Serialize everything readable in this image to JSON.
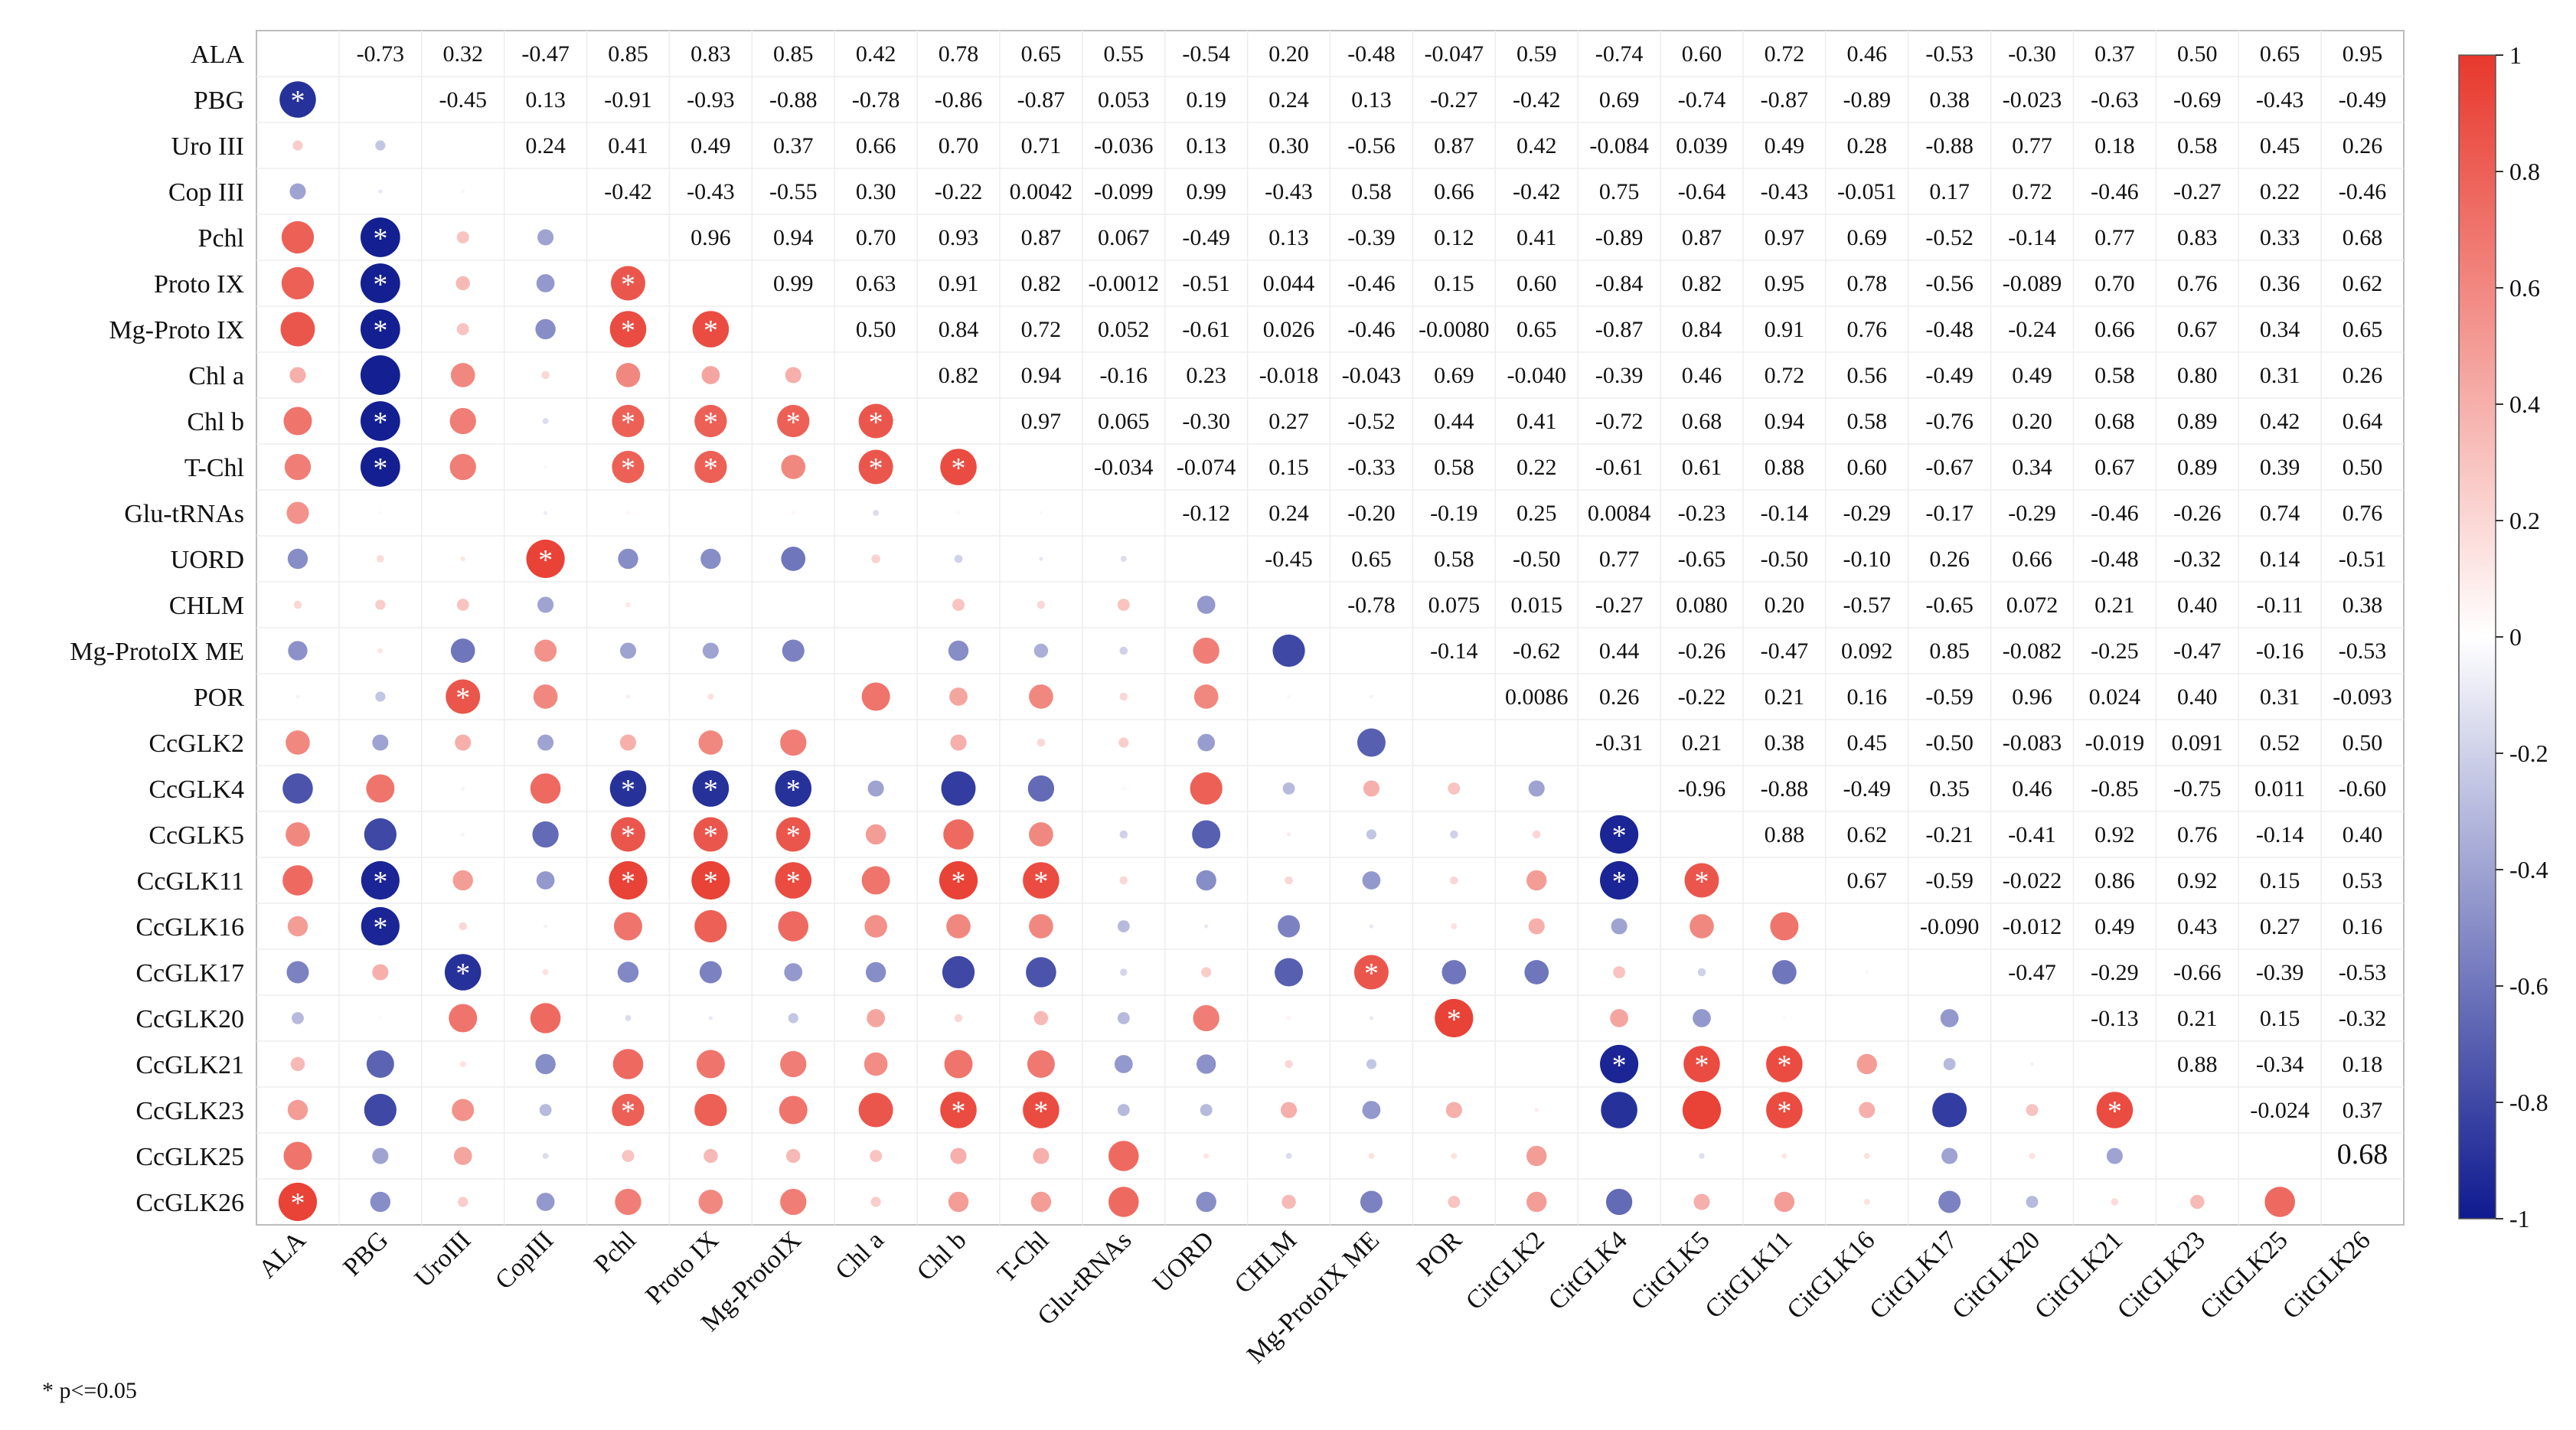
{
  "chart_data": {
    "type": "heatmap",
    "title": "",
    "row_labels": [
      "ALA",
      "PBG",
      "Uro III",
      "Cop III",
      "Pchl",
      "Proto IX",
      "Mg-Proto IX",
      "Chl a",
      "Chl b",
      "T-Chl",
      "Glu-tRNAs",
      "UORD",
      "CHLM",
      "Mg-ProtoIX ME",
      "POR",
      "CcGLK2",
      "CcGLK4",
      "CcGLK5",
      "CcGLK11",
      "CcGLK16",
      "CcGLK17",
      "CcGLK20",
      "CcGLK21",
      "CcGLK23",
      "CcGLK25",
      "CcGLK26"
    ],
    "col_labels": [
      "ALA",
      "PBG",
      "UroIII",
      "CopIII",
      "Pchl",
      "Proto IX",
      "Mg-ProtoIX",
      "Chl a",
      "Chl b",
      "T-Chl",
      "Glu-tRNAs",
      "UORD",
      "CHLM",
      "Mg-ProtoIX ME",
      "POR",
      "CitGLK2",
      "CitGLK4",
      "CitGLK5",
      "CitGLK11",
      "CitGLK16",
      "CitGLK17",
      "CitGLK20",
      "CitGLK21",
      "CitGLK23",
      "CitGLK25",
      "CitGLK26"
    ],
    "upper_labels": [
      [
        "-0.73",
        "0.32",
        "-0.47",
        "0.85",
        "0.83",
        "0.85",
        "0.42",
        "0.78",
        "0.65",
        "0.55",
        "-0.54",
        "0.20",
        "-0.48",
        "-0.047",
        "0.59",
        "-0.74",
        "0.60",
        "0.72",
        "0.46",
        "-0.53",
        "-0.30",
        "0.37",
        "0.50",
        "0.65",
        "0.95"
      ],
      [
        "-0.45",
        "0.13",
        "-0.91",
        "-0.93",
        "-0.88",
        "-0.78",
        "-0.86",
        "-0.87",
        "0.053",
        "0.19",
        "0.24",
        "0.13",
        "-0.27",
        "-0.42",
        "0.69",
        "-0.74",
        "-0.87",
        "-0.89",
        "0.38",
        "-0.023",
        "-0.63",
        "-0.69",
        "-0.43",
        "-0.49"
      ],
      [
        "0.24",
        "0.41",
        "0.49",
        "0.37",
        "0.66",
        "0.70",
        "0.71",
        "-0.036",
        "0.13",
        "0.30",
        "-0.56",
        "0.87",
        "0.42",
        "-0.084",
        "0.039",
        "0.49",
        "0.28",
        "-0.88",
        "0.77",
        "0.18",
        "0.58",
        "0.45",
        "0.26"
      ],
      [
        "-0.42",
        "-0.43",
        "-0.55",
        "0.30",
        "-0.22",
        "0.0042",
        "-0.099",
        "0.99",
        "-0.43",
        "0.58",
        "0.66",
        "-0.42",
        "0.75",
        "-0.64",
        "-0.43",
        "-0.051",
        "0.17",
        "0.72",
        "-0.46",
        "-0.27",
        "0.22",
        "-0.46"
      ],
      [
        "0.96",
        "0.94",
        "0.70",
        "0.93",
        "0.87",
        "0.067",
        "-0.49",
        "0.13",
        "-0.39",
        "0.12",
        "0.41",
        "-0.89",
        "0.87",
        "0.97",
        "0.69",
        "-0.52",
        "-0.14",
        "0.77",
        "0.83",
        "0.33",
        "0.68"
      ],
      [
        "0.99",
        "0.63",
        "0.91",
        "0.82",
        "-0.0012",
        "-0.51",
        "0.044",
        "-0.46",
        "0.15",
        "0.60",
        "-0.84",
        "0.82",
        "0.95",
        "0.78",
        "-0.56",
        "-0.089",
        "0.70",
        "0.76",
        "0.36",
        "0.62"
      ],
      [
        "0.50",
        "0.84",
        "0.72",
        "0.052",
        "-0.61",
        "0.026",
        "-0.46",
        "-0.0080",
        "0.65",
        "-0.87",
        "0.84",
        "0.91",
        "0.76",
        "-0.48",
        "-0.24",
        "0.66",
        "0.67",
        "0.34",
        "0.65"
      ],
      [
        "0.82",
        "0.94",
        "-0.16",
        "0.23",
        "-0.018",
        "-0.043",
        "0.69",
        "-0.040",
        "-0.39",
        "0.46",
        "0.72",
        "0.56",
        "-0.49",
        "0.49",
        "0.58",
        "0.80",
        "0.31",
        "0.26"
      ],
      [
        "0.97",
        "0.065",
        "-0.30",
        "0.27",
        "-0.52",
        "0.44",
        "0.41",
        "-0.72",
        "0.68",
        "0.94",
        "0.58",
        "-0.76",
        "0.20",
        "0.68",
        "0.89",
        "0.42",
        "0.64"
      ],
      [
        "-0.034",
        "-0.074",
        "0.15",
        "-0.33",
        "0.58",
        "0.22",
        "-0.61",
        "0.61",
        "0.88",
        "0.60",
        "-0.67",
        "0.34",
        "0.67",
        "0.89",
        "0.39",
        "0.50"
      ],
      [
        "-0.12",
        "0.24",
        "-0.20",
        "-0.19",
        "0.25",
        "0.0084",
        "-0.23",
        "-0.14",
        "-0.29",
        "-0.17",
        "-0.29",
        "-0.46",
        "-0.26",
        "0.74",
        "0.76"
      ],
      [
        "-0.45",
        "0.65",
        "0.58",
        "-0.50",
        "0.77",
        "-0.65",
        "-0.50",
        "-0.10",
        "0.26",
        "0.66",
        "-0.48",
        "-0.32",
        "0.14",
        "-0.51"
      ],
      [
        "-0.78",
        "0.075",
        "0.015",
        "-0.27",
        "0.080",
        "0.20",
        "-0.57",
        "-0.65",
        "0.072",
        "0.21",
        "0.40",
        "-0.11",
        "0.38"
      ],
      [
        "-0.14",
        "-0.62",
        "0.44",
        "-0.26",
        "-0.47",
        "0.092",
        "0.85",
        "-0.082",
        "-0.25",
        "-0.47",
        "-0.16",
        "-0.53"
      ],
      [
        "0.0086",
        "0.26",
        "-0.22",
        "0.21",
        "0.16",
        "-0.59",
        "0.96",
        "0.024",
        "0.40",
        "0.31",
        "-0.093"
      ],
      [
        "-0.31",
        "0.21",
        "0.38",
        "0.45",
        "-0.50",
        "-0.083",
        "-0.019",
        "0.091",
        "0.52",
        "0.50"
      ],
      [
        "-0.96",
        "-0.88",
        "-0.49",
        "0.35",
        "0.46",
        "-0.85",
        "-0.75",
        "0.011",
        "-0.60"
      ],
      [
        "0.88",
        "0.62",
        "-0.21",
        "-0.41",
        "0.92",
        "0.76",
        "-0.14",
        "0.40"
      ],
      [
        "0.67",
        "-0.59",
        "-0.022",
        "0.86",
        "0.92",
        "0.15",
        "0.53"
      ],
      [
        "-0.090",
        "-0.012",
        "0.49",
        "0.43",
        "0.27",
        "0.16"
      ],
      [
        "-0.47",
        "-0.29",
        "-0.66",
        "-0.39",
        "-0.53"
      ],
      [
        "-0.13",
        "0.21",
        "0.15",
        "-0.32"
      ],
      [
        "0.88",
        "-0.34",
        "0.18"
      ],
      [
        "-0.024",
        "0.37"
      ],
      [
        "0.68"
      ],
      []
    ],
    "lower_values": [
      [],
      [
        -0.9
      ],
      [
        0.25,
        -0.25
      ],
      [
        -0.4,
        -0.1,
        0.05
      ],
      [
        0.8,
        -0.98,
        0.3,
        -0.4
      ],
      [
        0.8,
        -0.98,
        0.35,
        -0.45,
        0.85
      ],
      [
        0.85,
        -0.98,
        0.3,
        -0.5,
        0.9,
        0.9
      ],
      [
        0.4,
        -0.98,
        0.6,
        0.2,
        0.6,
        0.45,
        0.4
      ],
      [
        0.7,
        -0.98,
        0.65,
        -0.15,
        0.8,
        0.8,
        0.8,
        0.85
      ],
      [
        0.65,
        -0.98,
        0.65,
        0.03,
        0.8,
        0.8,
        0.6,
        0.85,
        0.9
      ],
      [
        0.55,
        0.03,
        0.0,
        -0.08,
        0.05,
        0.0,
        0.05,
        -0.15,
        0.04,
        0.03
      ],
      [
        -0.5,
        0.18,
        0.12,
        0.95,
        -0.5,
        -0.5,
        -0.6,
        0.22,
        -0.2,
        -0.1,
        -0.15
      ],
      [
        0.2,
        0.25,
        0.3,
        -0.4,
        0.12,
        0.0,
        0.0,
        0.0,
        0.3,
        0.2,
        0.3,
        -0.45
      ],
      [
        -0.48,
        0.13,
        -0.6,
        0.55,
        -0.4,
        -0.4,
        -0.55,
        0.0,
        -0.5,
        -0.35,
        -0.2,
        0.65,
        -0.8
      ],
      [
        -0.05,
        -0.25,
        0.85,
        0.6,
        0.1,
        0.15,
        0.0,
        0.7,
        0.45,
        0.6,
        0.2,
        0.6,
        0.04,
        -0.05
      ],
      [
        0.6,
        -0.4,
        0.4,
        -0.4,
        0.4,
        0.6,
        0.65,
        0.0,
        0.4,
        0.2,
        0.25,
        -0.43,
        0.0,
        -0.7
      ],
      [
        -0.75,
        0.7,
        -0.05,
        0.75,
        -0.9,
        -0.9,
        -0.9,
        -0.4,
        -0.85,
        -0.65,
        0.05,
        0.8,
        -0.3,
        0.4,
        0.3,
        -0.4
      ],
      [
        0.6,
        -0.8,
        -0.05,
        -0.65,
        0.85,
        0.85,
        0.85,
        0.5,
        0.75,
        0.6,
        -0.2,
        -0.7,
        0.1,
        -0.25,
        -0.2,
        0.2,
        -0.95
      ],
      [
        0.75,
        -0.95,
        0.5,
        -0.45,
        0.95,
        0.95,
        0.9,
        0.7,
        0.95,
        0.9,
        0.2,
        -0.5,
        0.2,
        -0.45,
        0.2,
        0.5,
        -0.95,
        0.85
      ],
      [
        0.5,
        -0.95,
        0.2,
        -0.06,
        0.7,
        0.8,
        0.75,
        0.56,
        0.6,
        0.6,
        -0.3,
        -0.1,
        -0.55,
        -0.1,
        0.15,
        0.4,
        -0.4,
        0.6,
        0.7
      ],
      [
        -0.55,
        0.4,
        -0.9,
        0.15,
        -0.52,
        -0.55,
        -0.45,
        -0.5,
        -0.8,
        -0.75,
        -0.18,
        0.25,
        -0.7,
        0.85,
        -0.6,
        -0.6,
        0.3,
        -0.2,
        -0.6,
        0.05
      ],
      [
        -0.3,
        0.02,
        0.7,
        0.75,
        -0.15,
        -0.1,
        -0.25,
        0.45,
        0.2,
        0.35,
        -0.3,
        0.65,
        0.07,
        -0.1,
        0.95,
        0.0,
        0.45,
        -0.45,
        -0.02,
        -0.01,
        -0.45
      ],
      [
        0.35,
        -0.68,
        0.15,
        -0.5,
        0.75,
        0.7,
        0.65,
        0.58,
        0.7,
        0.68,
        -0.45,
        -0.48,
        0.2,
        -0.25,
        0.0,
        0.0,
        -0.95,
        0.9,
        0.9,
        0.5,
        -0.3,
        -0.05
      ],
      [
        0.5,
        -0.8,
        0.55,
        -0.3,
        0.8,
        0.8,
        0.7,
        0.85,
        0.9,
        0.9,
        -0.3,
        -0.3,
        0.4,
        -0.45,
        0.4,
        0.1,
        -0.9,
        0.95,
        0.9,
        0.4,
        -0.85,
        0.3,
        0.9
      ],
      [
        0.7,
        -0.4,
        0.45,
        -0.15,
        0.3,
        0.35,
        0.35,
        0.3,
        0.4,
        0.4,
        0.75,
        0.13,
        -0.15,
        0.15,
        0.15,
        0.5,
        0.0,
        -0.14,
        0.13,
        0.15,
        -0.4,
        0.15,
        -0.4,
        0.0
      ],
      [
        0.95,
        -0.5,
        0.25,
        -0.45,
        0.65,
        0.6,
        0.65,
        0.25,
        0.5,
        0.5,
        0.75,
        -0.5,
        0.35,
        -0.55,
        0.3,
        0.5,
        -0.65,
        0.4,
        0.5,
        0.15,
        -0.55,
        -0.3,
        0.18,
        0.35,
        0.75
      ]
    ],
    "significant_cells": [
      [
        1,
        0
      ],
      [
        4,
        1
      ],
      [
        5,
        1
      ],
      [
        5,
        4
      ],
      [
        6,
        1
      ],
      [
        6,
        4
      ],
      [
        6,
        5
      ],
      [
        8,
        1
      ],
      [
        8,
        4
      ],
      [
        8,
        5
      ],
      [
        8,
        6
      ],
      [
        8,
        7
      ],
      [
        9,
        1
      ],
      [
        9,
        4
      ],
      [
        9,
        5
      ],
      [
        9,
        7
      ],
      [
        9,
        8
      ],
      [
        11,
        3
      ],
      [
        14,
        2
      ],
      [
        16,
        4
      ],
      [
        16,
        5
      ],
      [
        16,
        6
      ],
      [
        17,
        4
      ],
      [
        17,
        5
      ],
      [
        17,
        6
      ],
      [
        17,
        16
      ],
      [
        18,
        1
      ],
      [
        18,
        4
      ],
      [
        18,
        5
      ],
      [
        18,
        6
      ],
      [
        18,
        8
      ],
      [
        18,
        9
      ],
      [
        18,
        16
      ],
      [
        18,
        17
      ],
      [
        19,
        1
      ],
      [
        20,
        2
      ],
      [
        20,
        13
      ],
      [
        21,
        14
      ],
      [
        22,
        16
      ],
      [
        22,
        17
      ],
      [
        22,
        18
      ],
      [
        23,
        4
      ],
      [
        23,
        8
      ],
      [
        23,
        9
      ],
      [
        23,
        18
      ],
      [
        23,
        22
      ],
      [
        25,
        0
      ]
    ],
    "significance_marker": "*",
    "colorbar": {
      "range": [
        -1,
        1
      ],
      "ticks": [
        "1",
        "0.8",
        "0.6",
        "0.4",
        "0.2",
        "0",
        "-0.2",
        "-0.4",
        "-0.6",
        "-0.8",
        "-1"
      ],
      "negative_color": "#0f1a8f",
      "neutral_color": "#ffffff",
      "positive_color": "#e8382c"
    },
    "footnote": "* p<=0.05"
  }
}
